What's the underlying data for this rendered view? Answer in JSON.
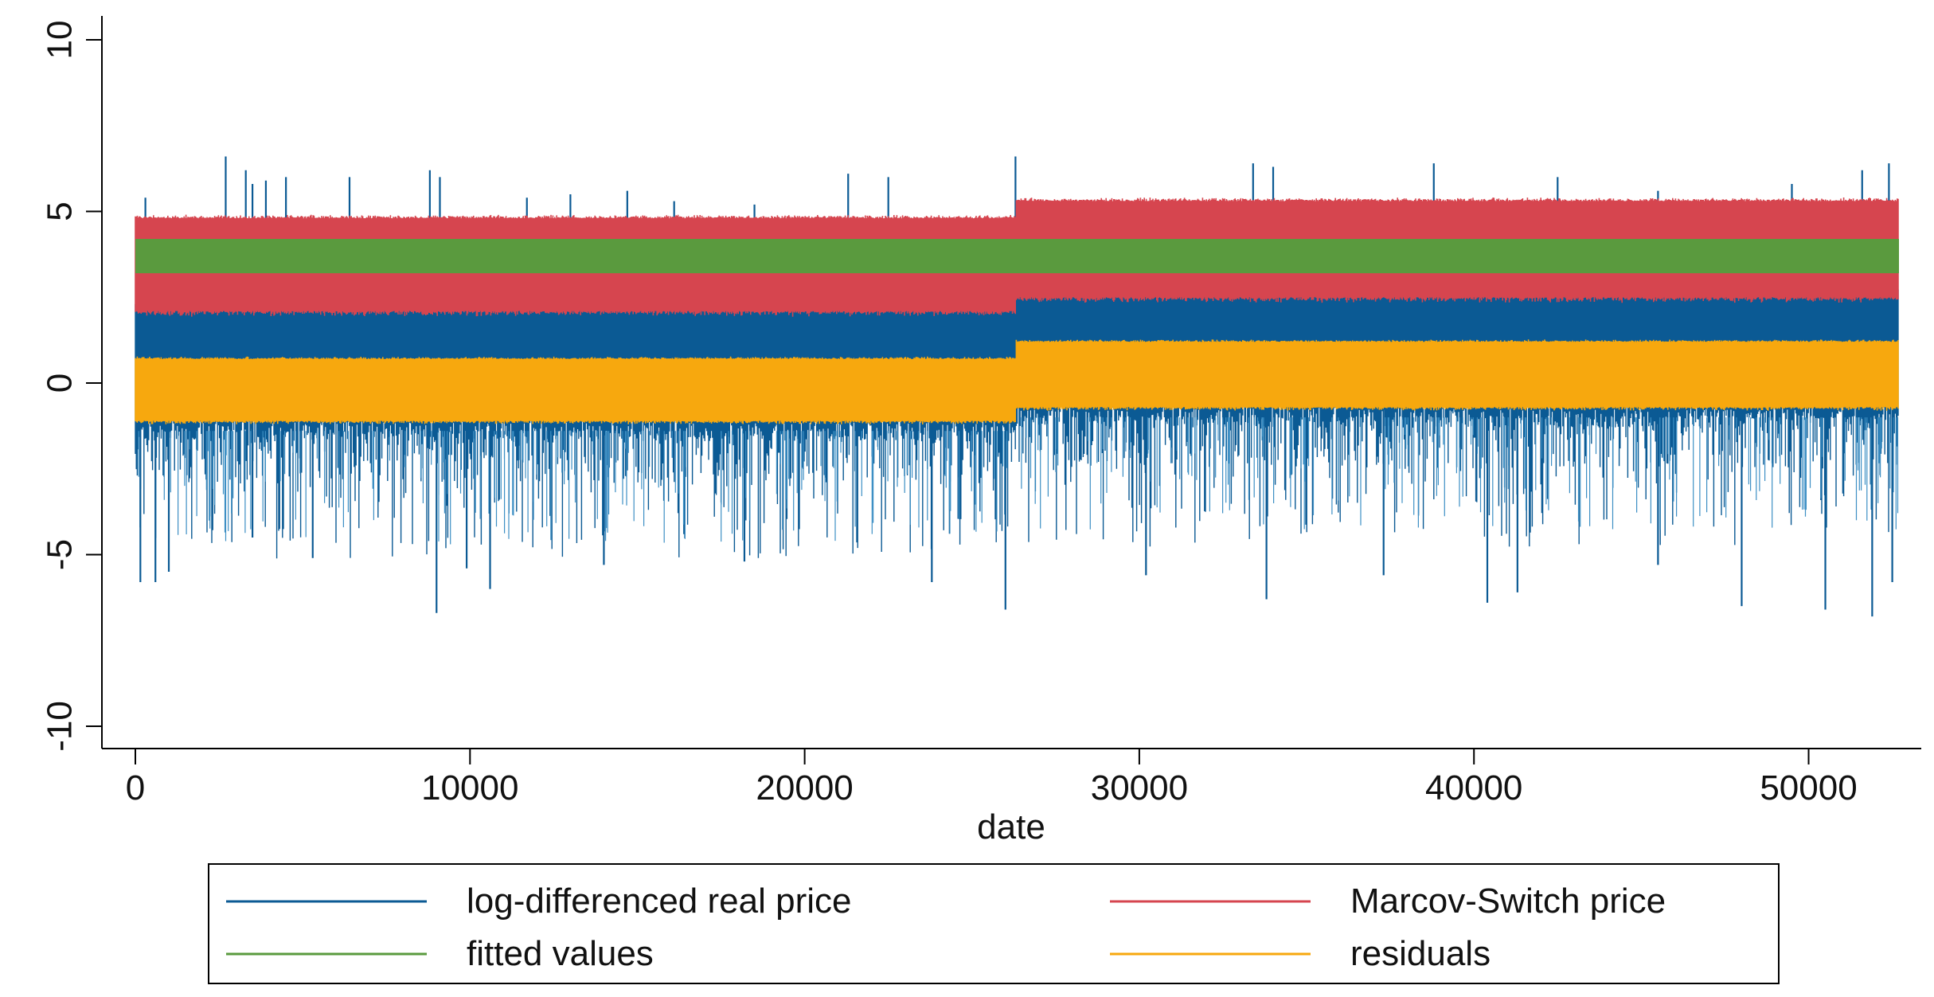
{
  "chart_data": {
    "type": "line",
    "title": "",
    "xlabel": "date",
    "ylabel": "",
    "xlim": [
      0,
      52700
    ],
    "ylim": [
      -10,
      10
    ],
    "x_ticks": [
      0,
      10000,
      20000,
      30000,
      40000,
      50000
    ],
    "x_tick_labels": [
      "0",
      "10000",
      "20000",
      "30000",
      "40000",
      "50000"
    ],
    "y_ticks": [
      -10,
      -5,
      0,
      5,
      10
    ],
    "y_tick_labels": [
      "-10",
      "-5",
      "0",
      "5",
      "10"
    ],
    "regime_break_x": 26300,
    "grid": false,
    "legend_position": "bottom",
    "series": [
      {
        "name": "log-differenced real price",
        "color": "#0b5a94",
        "bands": [
          [
            -1.1,
            2.1
          ],
          [
            -0.7,
            2.6
          ]
        ],
        "spikes_up": [
          [
            300,
            5.4
          ],
          [
            2700,
            6.6
          ],
          [
            3300,
            6.2
          ],
          [
            3500,
            5.8
          ],
          [
            3900,
            5.9
          ],
          [
            4500,
            6.0
          ],
          [
            6400,
            6.0
          ],
          [
            8800,
            6.2
          ],
          [
            9100,
            6.0
          ],
          [
            11700,
            5.4
          ],
          [
            13000,
            5.5
          ],
          [
            14700,
            5.6
          ],
          [
            16100,
            5.3
          ],
          [
            18500,
            5.2
          ],
          [
            21300,
            6.1
          ],
          [
            22500,
            6.0
          ],
          [
            26300,
            6.6
          ],
          [
            33400,
            6.4
          ],
          [
            34000,
            6.3
          ],
          [
            38800,
            6.4
          ],
          [
            42500,
            6.0
          ],
          [
            45500,
            5.6
          ],
          [
            49500,
            5.8
          ],
          [
            51600,
            6.2
          ],
          [
            52400,
            6.4
          ]
        ],
        "spikes_down": [
          [
            150,
            -5.8
          ],
          [
            600,
            -5.8
          ],
          [
            1000,
            -5.5
          ],
          [
            3500,
            -4.5
          ],
          [
            5300,
            -5.1
          ],
          [
            9000,
            -6.7
          ],
          [
            9900,
            -5.4
          ],
          [
            10600,
            -6.0
          ],
          [
            14000,
            -5.3
          ],
          [
            18200,
            -5.2
          ],
          [
            23800,
            -5.8
          ],
          [
            26000,
            -6.6
          ],
          [
            30200,
            -5.6
          ],
          [
            33800,
            -6.3
          ],
          [
            37300,
            -5.6
          ],
          [
            40400,
            -6.4
          ],
          [
            41300,
            -6.1
          ],
          [
            45500,
            -5.3
          ],
          [
            48000,
            -6.5
          ],
          [
            50500,
            -6.6
          ],
          [
            51900,
            -6.8
          ],
          [
            52500,
            -5.8
          ]
        ]
      },
      {
        "name": "Marcov-Switch price",
        "color": "#d6454f",
        "bands": [
          [
            2.1,
            4.8
          ],
          [
            2.5,
            5.3
          ]
        ]
      },
      {
        "name": "fitted values",
        "color": "#5a9a3e",
        "bands": [
          [
            3.2,
            4.2
          ],
          [
            3.2,
            4.2
          ]
        ]
      },
      {
        "name": "residuals",
        "color": "#f7a80e",
        "bands": [
          [
            -1.1,
            0.7
          ],
          [
            -0.7,
            1.2
          ]
        ]
      }
    ]
  },
  "legend": {
    "items": [
      {
        "label": "log-differenced real price",
        "color": "#0b5a94"
      },
      {
        "label": "Marcov-Switch price",
        "color": "#d6454f"
      },
      {
        "label": "fitted values",
        "color": "#5a9a3e"
      },
      {
        "label": "residuals",
        "color": "#f7a80e"
      }
    ]
  }
}
